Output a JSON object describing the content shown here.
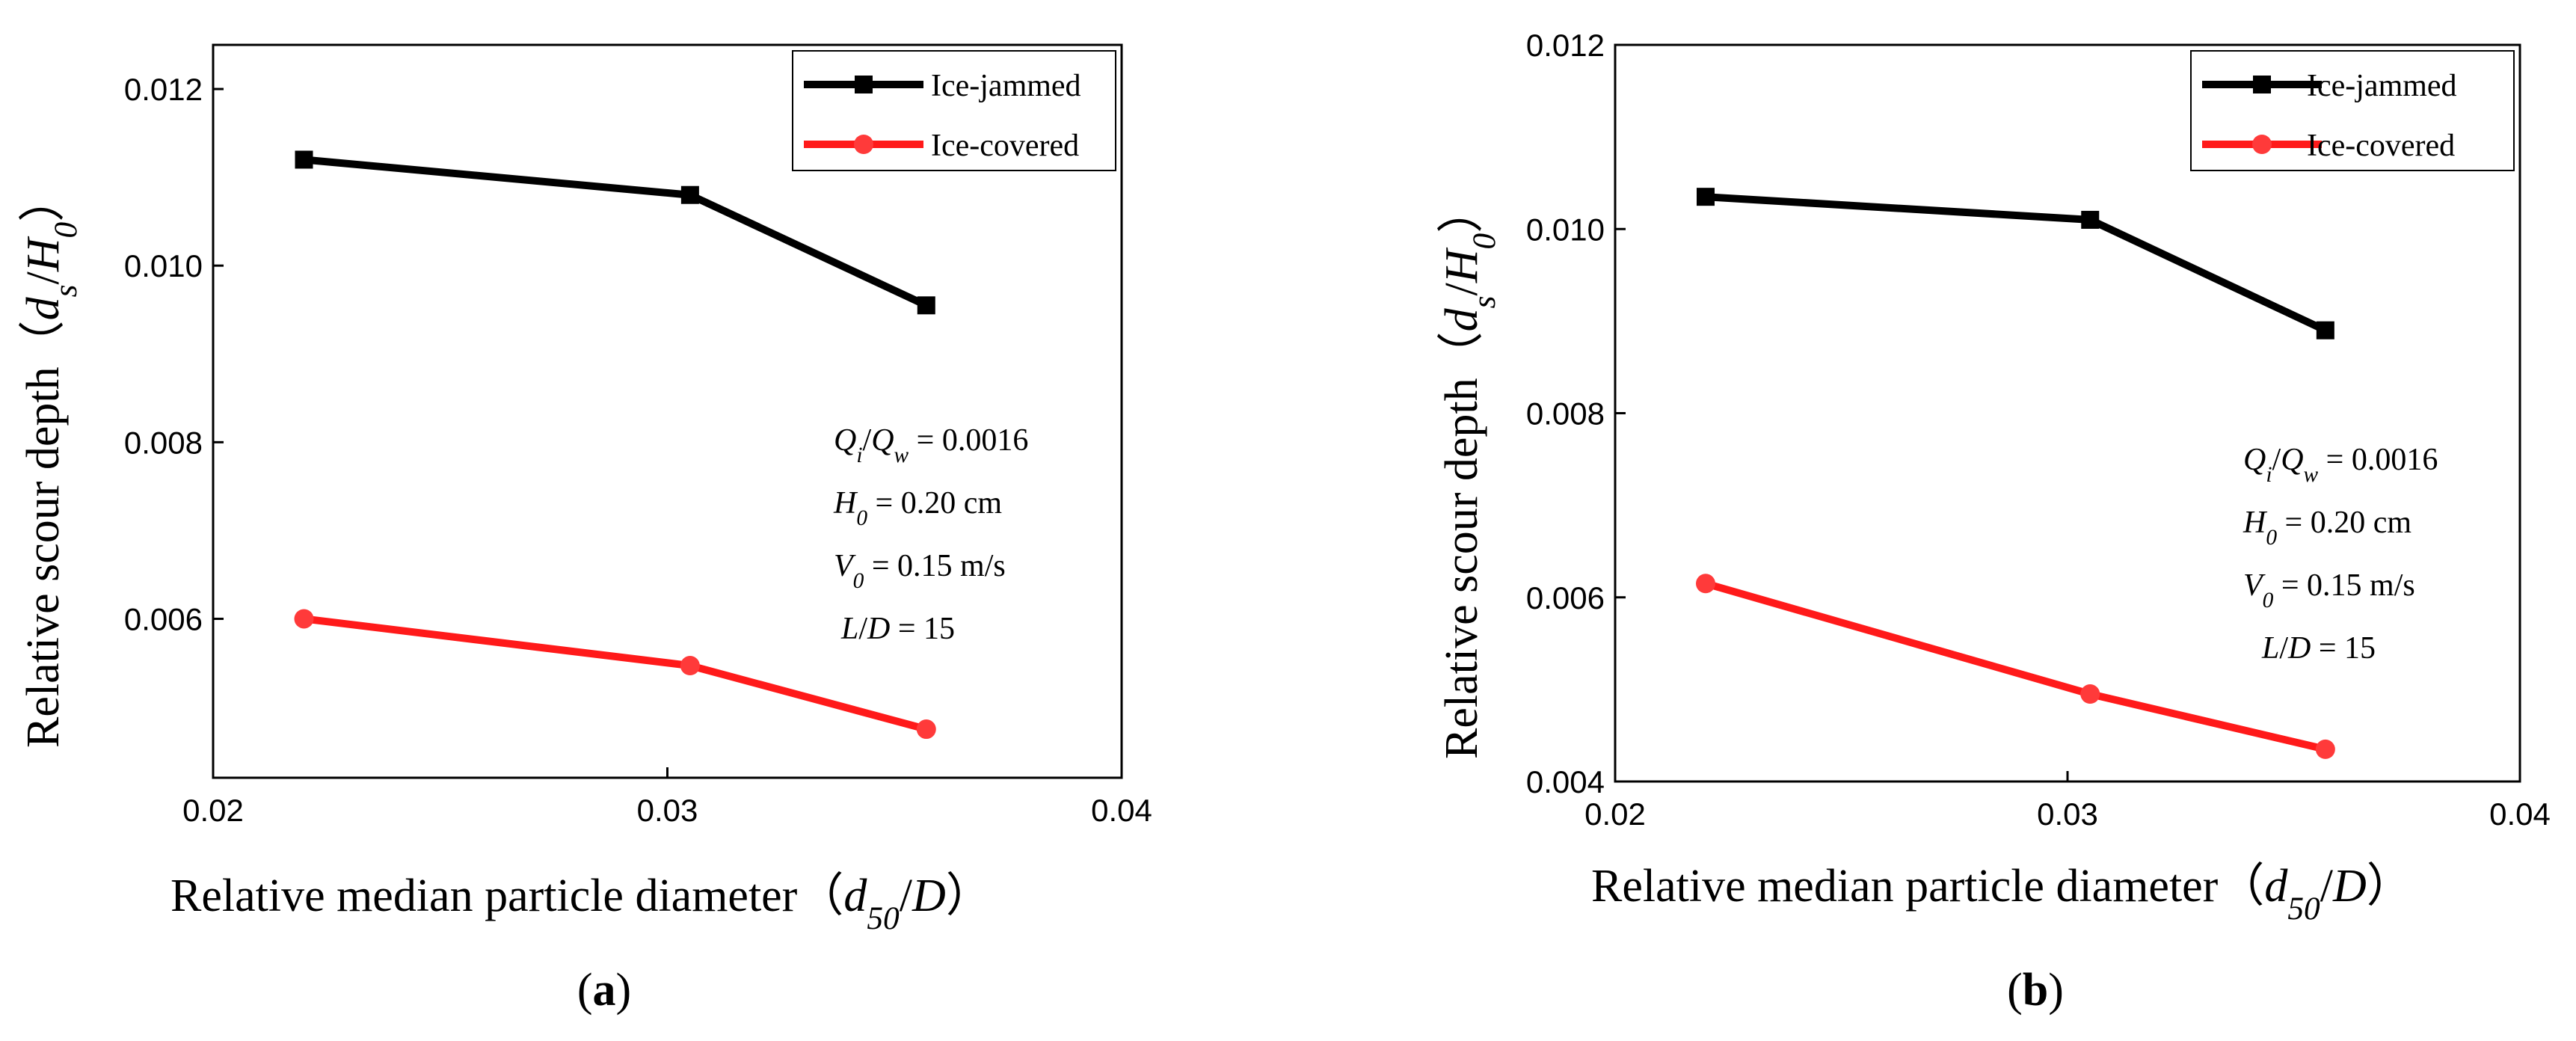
{
  "colors": {
    "ice_jammed": "#000000",
    "ice_covered": "#ff1a1a",
    "axis": "#000000"
  },
  "chart_data": [
    {
      "type": "line",
      "panel_label": "(a)",
      "xlabel": "Relative median particle diameter（d50/D）",
      "ylabel": "Relative scour depth（ds/H0）",
      "xlim": [
        0.02,
        0.04
      ],
      "ylim": [
        0.0042,
        0.0125
      ],
      "xticks": [
        "0.02",
        "0.03",
        "0.04"
      ],
      "xtick_values": [
        0.02,
        0.03,
        0.04
      ],
      "yticks": [
        "0.006",
        "0.008",
        "0.010",
        "0.012"
      ],
      "ytick_values": [
        0.006,
        0.008,
        0.01,
        0.012
      ],
      "series": [
        {
          "name": "Ice-jammed",
          "x": [
            0.022,
            0.0305,
            0.0357
          ],
          "values": [
            0.0112,
            0.0108,
            0.00955
          ]
        },
        {
          "name": "Ice-covered",
          "x": [
            0.022,
            0.0305,
            0.0357
          ],
          "values": [
            0.006,
            0.00547,
            0.00475
          ]
        }
      ],
      "annotations": [
        "Qi/Qw = 0.0016",
        "H0 = 0.20 cm",
        "V0 = 0.15 m/s",
        "L/D = 15"
      ]
    },
    {
      "type": "line",
      "panel_label": "(b)",
      "xlabel": "Relative median particle diameter（d50/D）",
      "ylabel": "Relative scour depth（ds/H0）",
      "xlim": [
        0.02,
        0.04
      ],
      "ylim": [
        0.004,
        0.012
      ],
      "xticks": [
        "0.02",
        "0.03",
        "0.04"
      ],
      "xtick_values": [
        0.02,
        0.03,
        0.04
      ],
      "yticks": [
        "0.004",
        "0.006",
        "0.008",
        "0.010",
        "0.012"
      ],
      "ytick_values": [
        0.004,
        0.006,
        0.008,
        0.01,
        0.012
      ],
      "series": [
        {
          "name": "Ice-jammed",
          "x": [
            0.022,
            0.0305,
            0.0357
          ],
          "values": [
            0.01035,
            0.0101,
            0.0089
          ]
        },
        {
          "name": "Ice-covered",
          "x": [
            0.022,
            0.0305,
            0.0357
          ],
          "values": [
            0.00615,
            0.00495,
            0.00435
          ]
        }
      ],
      "annotations": [
        "Qi/Qw = 0.0016",
        "H0 = 0.20 cm",
        "V0 = 0.15 m/s",
        "L/D = 15"
      ]
    }
  ]
}
